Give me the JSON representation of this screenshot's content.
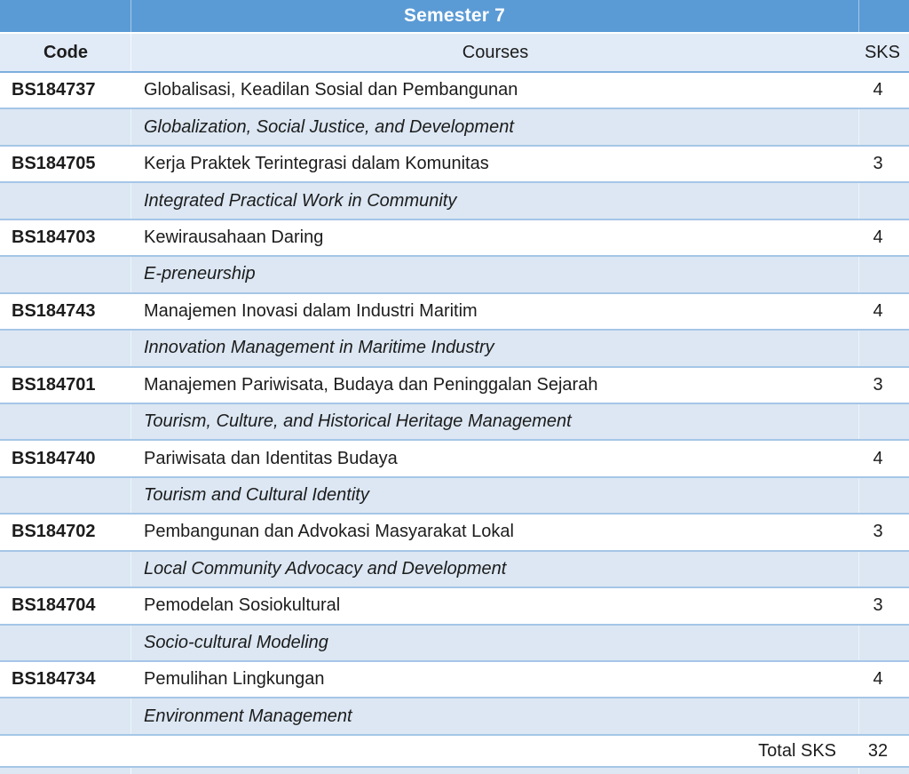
{
  "banner": {
    "title": "Semester 7"
  },
  "columns": {
    "code": "Code",
    "courses": "Courses",
    "sks": "SKS"
  },
  "courses": [
    {
      "code": "BS184737",
      "name_id": "Globalisasi, Keadilan Sosial dan Pembangunan",
      "name_en": "Globalization, Social Justice, and Development",
      "sks": "4"
    },
    {
      "code": "BS184705",
      "name_id": "Kerja Praktek Terintegrasi dalam Komunitas",
      "name_en": "Integrated Practical Work in Community",
      "sks": "3"
    },
    {
      "code": "BS184703",
      "name_id": "Kewirausahaan Daring",
      "name_en": "E-preneurship",
      "sks": "4"
    },
    {
      "code": "BS184743",
      "name_id": "Manajemen Inovasi dalam Industri Maritim",
      "name_en": "Innovation Management in Maritime Industry",
      "sks": "4"
    },
    {
      "code": "BS184701",
      "name_id": "Manajemen Pariwisata, Budaya dan Peninggalan Sejarah",
      "name_en": "Tourism, Culture, and Historical Heritage Management",
      "sks": "3"
    },
    {
      "code": "BS184740",
      "name_id": "Pariwisata dan Identitas Budaya",
      "name_en": "Tourism and Cultural Identity",
      "sks": "4"
    },
    {
      "code": "BS184702",
      "name_id": "Pembangunan dan Advokasi Masyarakat Lokal",
      "name_en": "Local Community Advocacy and Development",
      "sks": "3"
    },
    {
      "code": "BS184704",
      "name_id": "Pemodelan Sosiokultural",
      "name_en": "Socio-cultural Modeling",
      "sks": "3"
    },
    {
      "code": "BS184734",
      "name_id": "Pemulihan Lingkungan",
      "name_en": "Environment Management",
      "sks": "4"
    }
  ],
  "footer": {
    "total_label": "Total SKS",
    "total_value": "32"
  },
  "colors": {
    "accent": "#5B9BD5",
    "band": "#DCE7F3",
    "band_light": "#E1EBF7",
    "band_border": "#A5C6E7",
    "header_rule": "#7EAEDD"
  }
}
